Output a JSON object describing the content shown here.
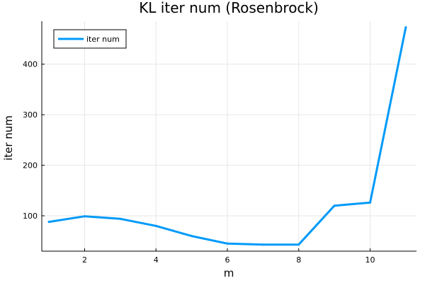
{
  "chart_data": {
    "type": "line",
    "title": "KL iter num (Rosenbrock)",
    "xlabel": "m",
    "ylabel": "iter num",
    "xlim": [
      0.8,
      11.3
    ],
    "ylim": [
      30,
      485
    ],
    "xticks": [
      2,
      4,
      6,
      8,
      10
    ],
    "yticks": [
      100,
      200,
      300,
      400
    ],
    "grid": true,
    "legend_position": "top-left",
    "series": [
      {
        "name": "iter num",
        "color": "#009af9",
        "x": [
          1,
          2,
          3,
          4,
          5,
          6,
          7,
          8,
          9,
          10,
          11
        ],
        "y": [
          88,
          99,
          94,
          80,
          60,
          45,
          43,
          43,
          120,
          126,
          473
        ]
      }
    ]
  }
}
